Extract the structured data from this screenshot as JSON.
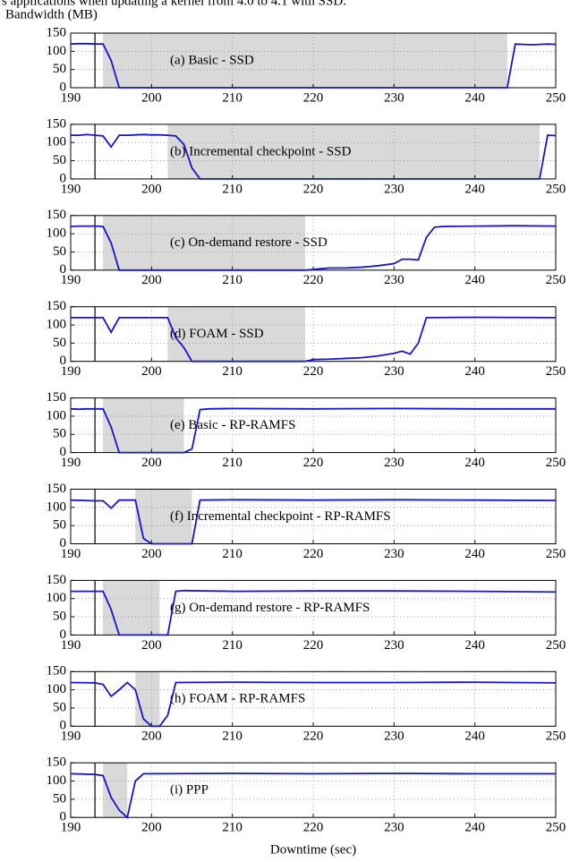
{
  "caption": "s applications when updating a kernel from 4.0 to 4.1 with SSD.",
  "chart_data": [
    {
      "type": "line",
      "title": "(a) Basic - SSD",
      "y_label": "Bandwidth (MB)",
      "x": [
        190,
        191,
        192,
        193,
        194,
        195,
        196,
        244,
        245,
        246,
        247,
        248,
        249,
        250
      ],
      "series": [
        {
          "color": "#1414d2",
          "values": [
            120,
            121,
            121,
            120,
            120,
            75,
            0,
            0,
            120,
            119,
            118,
            119,
            120,
            119
          ]
        }
      ],
      "xlim": [
        190,
        250
      ],
      "ylim": [
        0,
        150
      ],
      "xticks": [
        190,
        200,
        210,
        220,
        230,
        240,
        250
      ],
      "yticks": [
        0,
        50,
        100,
        150
      ],
      "grid": true,
      "shade": [
        194,
        244
      ],
      "marker_x": 193
    },
    {
      "type": "line",
      "title": "(b) Incremental checkpoint - SSD",
      "x": [
        190,
        191,
        192,
        193,
        194,
        195,
        196,
        197,
        198,
        199,
        200,
        201,
        202,
        203,
        204,
        205,
        206,
        248,
        249,
        250
      ],
      "series": [
        {
          "color": "#1414d2",
          "values": [
            120,
            120,
            122,
            120,
            118,
            88,
            120,
            120,
            121,
            122,
            121,
            121,
            120,
            118,
            95,
            30,
            0,
            0,
            120,
            119
          ]
        }
      ],
      "xlim": [
        190,
        250
      ],
      "ylim": [
        0,
        150
      ],
      "xticks": [
        190,
        200,
        210,
        220,
        230,
        240,
        250
      ],
      "yticks": [
        0,
        50,
        100,
        150
      ],
      "grid": true,
      "shade": [
        202,
        248
      ],
      "marker_x": 193
    },
    {
      "type": "line",
      "title": "(c) On-demand restore - SSD",
      "x": [
        190,
        191,
        192,
        193,
        194,
        195,
        196,
        219,
        220,
        221,
        222,
        223,
        224,
        225,
        226,
        227,
        228,
        229,
        230,
        231,
        232,
        233,
        234,
        235,
        236,
        240,
        245,
        250
      ],
      "series": [
        {
          "color": "#1414d2",
          "values": [
            120,
            121,
            121,
            121,
            120,
            75,
            0,
            0,
            2,
            4,
            6,
            6,
            6,
            7,
            8,
            10,
            12,
            15,
            18,
            30,
            30,
            28,
            90,
            118,
            120,
            121,
            122,
            121
          ]
        }
      ],
      "xlim": [
        190,
        250
      ],
      "ylim": [
        0,
        150
      ],
      "xticks": [
        190,
        200,
        210,
        220,
        230,
        240,
        250
      ],
      "yticks": [
        0,
        50,
        100,
        150
      ],
      "grid": true,
      "shade": [
        194,
        219
      ],
      "marker_x": 193
    },
    {
      "type": "line",
      "title": "(d) FOAM - SSD",
      "x": [
        190,
        193,
        194,
        195,
        196,
        197,
        200,
        202,
        203,
        204,
        205,
        219,
        220,
        222,
        224,
        226,
        228,
        230,
        231,
        232,
        233,
        234,
        240,
        250
      ],
      "series": [
        {
          "color": "#1414d2",
          "values": [
            120,
            120,
            120,
            80,
            120,
            120,
            120,
            120,
            65,
            38,
            0,
            0,
            5,
            6,
            8,
            10,
            15,
            22,
            28,
            20,
            50,
            120,
            121,
            120
          ]
        }
      ],
      "xlim": [
        190,
        250
      ],
      "ylim": [
        0,
        150
      ],
      "xticks": [
        190,
        200,
        210,
        220,
        230,
        240,
        250
      ],
      "yticks": [
        0,
        50,
        100,
        150
      ],
      "grid": true,
      "shade": [
        202,
        219
      ],
      "marker_x": 193
    },
    {
      "type": "line",
      "title": "(e) Basic - RP-RAMFS",
      "x": [
        190,
        191,
        192,
        193,
        194,
        195,
        196,
        204,
        205,
        206,
        207,
        210,
        220,
        230,
        240,
        250
      ],
      "series": [
        {
          "color": "#1414d2",
          "values": [
            120,
            119,
            120,
            120,
            120,
            70,
            0,
            0,
            10,
            118,
            120,
            121,
            120,
            121,
            120,
            120
          ]
        }
      ],
      "xlim": [
        190,
        250
      ],
      "ylim": [
        0,
        150
      ],
      "xticks": [
        190,
        200,
        210,
        220,
        230,
        240,
        250
      ],
      "yticks": [
        0,
        50,
        100,
        150
      ],
      "grid": true,
      "shade": [
        194,
        204
      ],
      "marker_x": 193
    },
    {
      "type": "line",
      "title": "(f) Incremental checkpoint - RP-RAMFS",
      "x": [
        190,
        193,
        194,
        195,
        196,
        197,
        198,
        199,
        200,
        205,
        206,
        210,
        220,
        230,
        240,
        250
      ],
      "series": [
        {
          "color": "#1414d2",
          "values": [
            120,
            118,
            118,
            98,
            120,
            120,
            120,
            15,
            0,
            0,
            120,
            121,
            120,
            121,
            120,
            119
          ]
        }
      ],
      "xlim": [
        190,
        250
      ],
      "ylim": [
        0,
        150
      ],
      "xticks": [
        190,
        200,
        210,
        220,
        230,
        240,
        250
      ],
      "yticks": [
        0,
        50,
        100,
        150
      ],
      "grid": true,
      "shade": [
        198,
        205
      ],
      "marker_x": 193
    },
    {
      "type": "line",
      "title": "(g) On-demand restore - RP-RAMFS",
      "x": [
        190,
        193,
        194,
        195,
        196,
        201,
        202,
        203,
        204,
        210,
        220,
        230,
        240,
        250
      ],
      "series": [
        {
          "color": "#1414d2",
          "values": [
            120,
            120,
            120,
            70,
            0,
            0,
            0,
            120,
            122,
            120,
            121,
            121,
            120,
            118
          ]
        }
      ],
      "xlim": [
        190,
        250
      ],
      "ylim": [
        0,
        150
      ],
      "xticks": [
        190,
        200,
        210,
        220,
        230,
        240,
        250
      ],
      "yticks": [
        0,
        50,
        100,
        150
      ],
      "grid": true,
      "shade": [
        194,
        201
      ],
      "marker_x": 193
    },
    {
      "type": "line",
      "title": "(h) FOAM - RP-RAMFS",
      "x": [
        190,
        193,
        194,
        195,
        196,
        197,
        198,
        199,
        200,
        201,
        202,
        203,
        210,
        220,
        230,
        240,
        250
      ],
      "series": [
        {
          "color": "#1414d2",
          "values": [
            120,
            119,
            115,
            82,
            100,
            120,
            100,
            20,
            0,
            0,
            30,
            120,
            121,
            120,
            120,
            121,
            119
          ]
        }
      ],
      "xlim": [
        190,
        250
      ],
      "ylim": [
        0,
        150
      ],
      "xticks": [
        190,
        200,
        210,
        220,
        230,
        240,
        250
      ],
      "yticks": [
        0,
        50,
        100,
        150
      ],
      "grid": true,
      "shade": [
        198,
        201
      ],
      "marker_x": 193
    },
    {
      "type": "line",
      "title": "(i) PPP",
      "x_label": "Downtime (sec)",
      "x": [
        190,
        193,
        194,
        195,
        196,
        197,
        198,
        199,
        200,
        210,
        220,
        230,
        240,
        250
      ],
      "series": [
        {
          "color": "#1414d2",
          "values": [
            120,
            118,
            115,
            55,
            20,
            0,
            100,
            120,
            120,
            121,
            120,
            121,
            120,
            120
          ]
        }
      ],
      "xlim": [
        190,
        250
      ],
      "ylim": [
        0,
        150
      ],
      "xticks": [
        190,
        200,
        210,
        220,
        230,
        240,
        250
      ],
      "yticks": [
        0,
        50,
        100,
        150
      ],
      "grid": true,
      "shade": [
        194,
        197
      ],
      "marker_x": 193
    }
  ]
}
